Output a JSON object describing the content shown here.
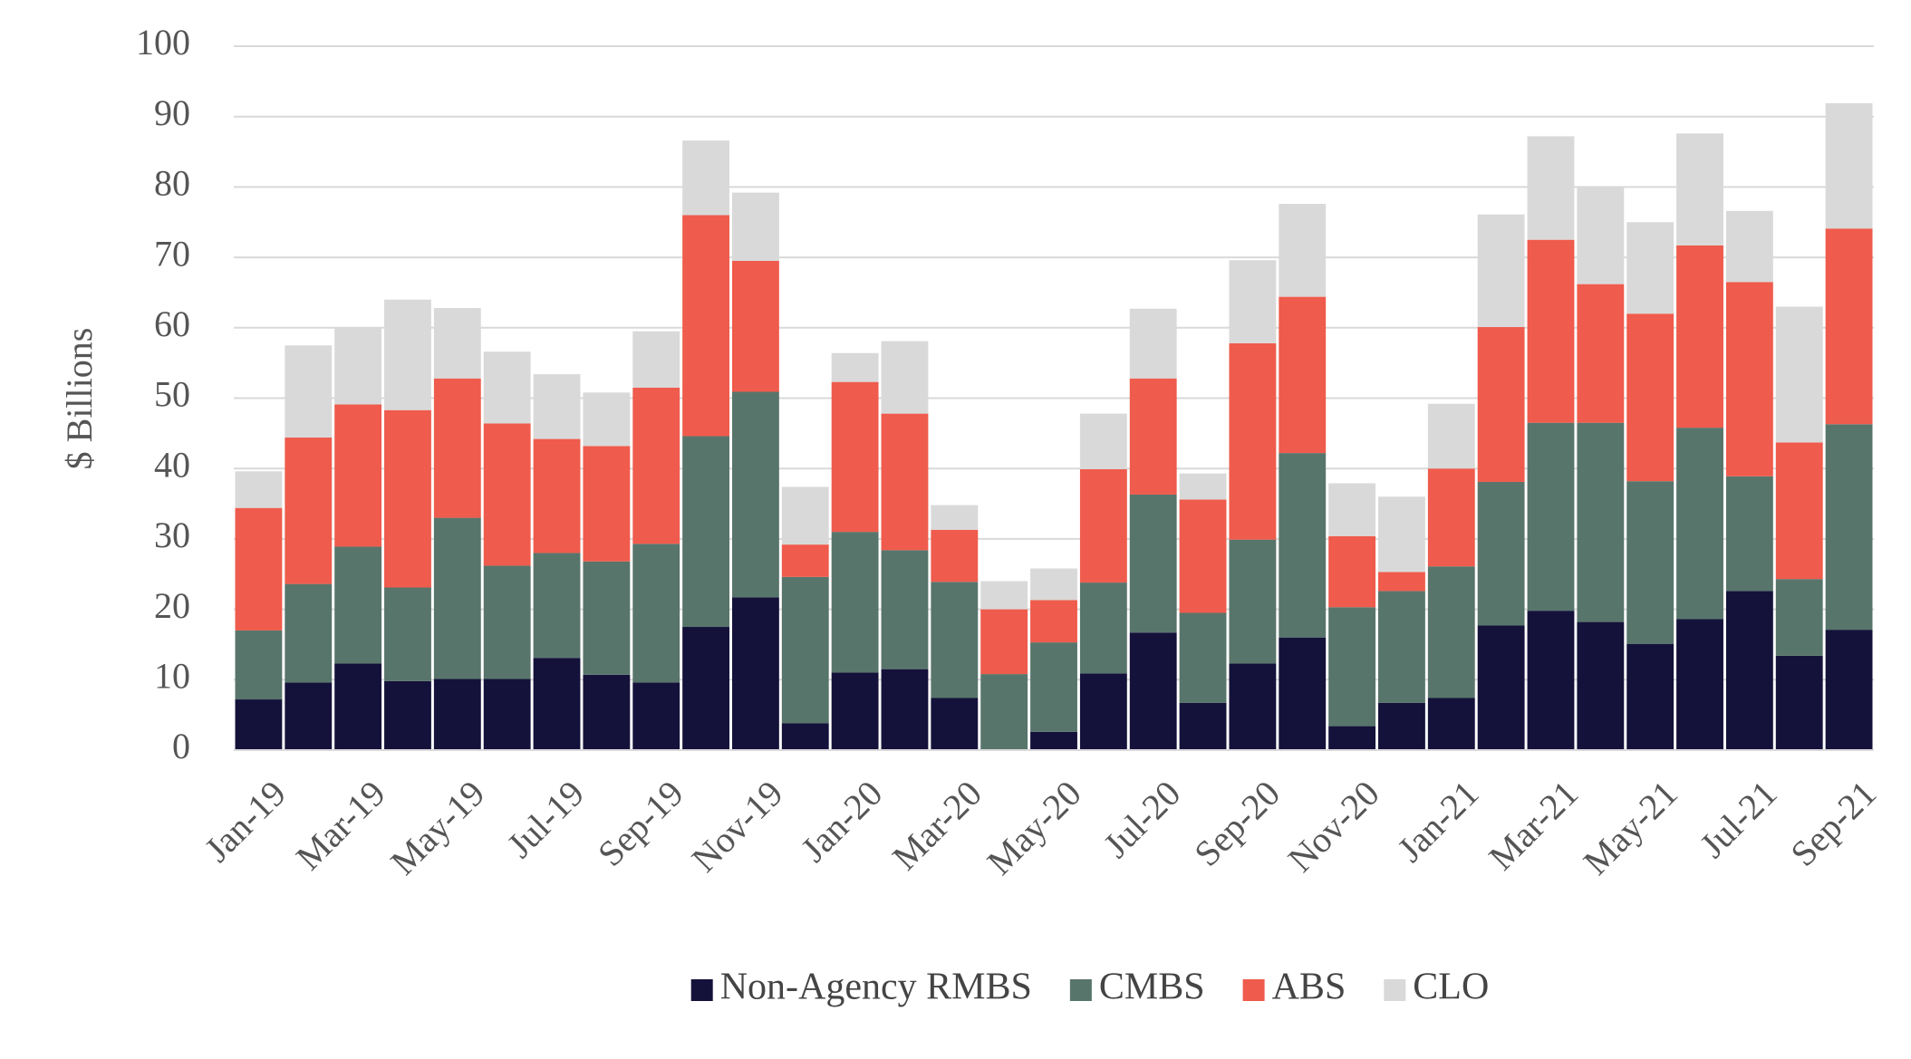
{
  "chart_data": {
    "type": "stacked-bar",
    "y_label": "$ Billions",
    "categories": [
      "Jan-19",
      null,
      "Mar-19",
      null,
      "May-19",
      null,
      "Jul-19",
      null,
      "Sep-19",
      null,
      "Nov-19",
      null,
      "Jan-20",
      null,
      "Mar-20",
      null,
      "May-20",
      null,
      "Jul-20",
      null,
      "Sep-20",
      null,
      "Nov-20",
      null,
      "Jan-21",
      null,
      "Mar-21",
      null,
      "May-21",
      null,
      "Jul-21",
      null,
      "Sep-21"
    ],
    "series": [
      {
        "name": "Non-Agency RMBS",
        "color": "#14123a",
        "values": [
          7.2,
          9.6,
          12.3,
          9.8,
          10.1,
          10.1,
          13.1,
          10.7,
          9.6,
          17.5,
          21.7,
          3.8,
          11.0,
          11.5,
          7.4,
          0,
          2.6,
          10.9,
          16.7,
          6.7,
          12.3,
          16.0,
          3.4,
          6.7,
          7.4,
          17.7,
          19.8,
          18.2,
          15.1,
          18.6,
          22.6,
          13.4,
          17.1
        ]
      },
      {
        "name": "CMBS",
        "color": "#58756b",
        "values": [
          9.8,
          14.0,
          16.6,
          13.3,
          22.9,
          16.1,
          14.9,
          16.1,
          19.7,
          27.1,
          29.2,
          20.8,
          20.0,
          16.9,
          16.5,
          10.8,
          12.7,
          12.9,
          19.6,
          12.8,
          17.6,
          26.2,
          16.9,
          15.9,
          18.7,
          20.4,
          26.7,
          28.3,
          23.1,
          27.2,
          16.3,
          10.9,
          29.2
        ]
      },
      {
        "name": "ABS",
        "color": "#ef5b4c",
        "values": [
          17.4,
          20.8,
          20.2,
          25.2,
          19.8,
          20.2,
          16.2,
          16.4,
          22.2,
          31.4,
          18.6,
          4.6,
          21.3,
          19.4,
          7.4,
          9.2,
          6.0,
          16.1,
          16.5,
          16.1,
          27.9,
          22.2,
          10.1,
          2.7,
          13.9,
          22.0,
          26.0,
          19.7,
          23.8,
          25.9,
          27.6,
          19.4,
          27.8
        ]
      },
      {
        "name": "CLO",
        "color": "#d9d9d9",
        "values": [
          5.2,
          13.1,
          11.0,
          15.7,
          10.0,
          10.2,
          9.2,
          7.6,
          8.0,
          10.6,
          9.7,
          8.2,
          4.1,
          10.3,
          3.5,
          4.0,
          4.5,
          7.9,
          9.9,
          3.7,
          11.8,
          13.2,
          7.5,
          10.7,
          9.2,
          16.0,
          14.7,
          13.9,
          13.0,
          15.9,
          10.1,
          19.3,
          17.8
        ]
      }
    ],
    "ylim": [
      0,
      100
    ],
    "yticks": [
      0,
      10,
      20,
      30,
      40,
      50,
      60,
      70,
      80,
      90,
      100
    ],
    "grid": true
  }
}
